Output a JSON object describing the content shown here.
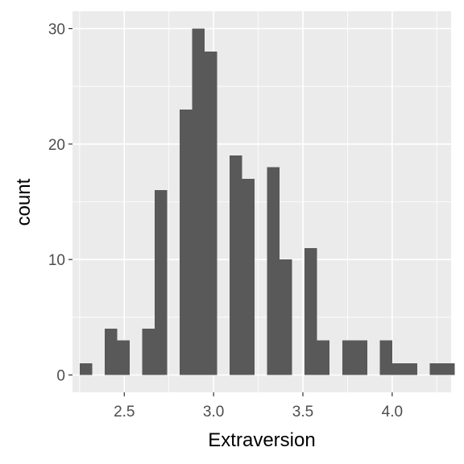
{
  "chart_data": {
    "type": "bar",
    "subtype": "histogram",
    "title": "",
    "xlabel": "Extraversion",
    "ylabel": "count",
    "xlim": [
      2.21,
      4.33
    ],
    "ylim": [
      -1.5,
      31.5
    ],
    "x_ticks": [
      2.5,
      3.0,
      3.5,
      4.0
    ],
    "x_tick_labels": [
      "2.5",
      "3.0",
      "3.5",
      "4.0"
    ],
    "y_ticks": [
      0,
      10,
      20,
      30
    ],
    "y_tick_labels": [
      "0",
      "10",
      "20",
      "30"
    ],
    "grid": true,
    "legend": "none",
    "colors": {
      "panel": "#ebebeb",
      "grid": "#ffffff",
      "bar": "#595959"
    },
    "bins": [
      {
        "x0": 2.25,
        "x1": 2.32,
        "count": 1
      },
      {
        "x0": 2.32,
        "x1": 2.39,
        "count": 0
      },
      {
        "x0": 2.39,
        "x1": 2.46,
        "count": 4
      },
      {
        "x0": 2.46,
        "x1": 2.53,
        "count": 3
      },
      {
        "x0": 2.53,
        "x1": 2.6,
        "count": 0
      },
      {
        "x0": 2.6,
        "x1": 2.67,
        "count": 4
      },
      {
        "x0": 2.67,
        "x1": 2.74,
        "count": 16
      },
      {
        "x0": 2.74,
        "x1": 2.81,
        "count": 0
      },
      {
        "x0": 2.81,
        "x1": 2.88,
        "count": 23
      },
      {
        "x0": 2.88,
        "x1": 2.95,
        "count": 30
      },
      {
        "x0": 2.95,
        "x1": 3.02,
        "count": 28
      },
      {
        "x0": 3.02,
        "x1": 3.09,
        "count": 0
      },
      {
        "x0": 3.09,
        "x1": 3.16,
        "count": 19
      },
      {
        "x0": 3.16,
        "x1": 3.23,
        "count": 17
      },
      {
        "x0": 3.23,
        "x1": 3.3,
        "count": 0
      },
      {
        "x0": 3.3,
        "x1": 3.37,
        "count": 18
      },
      {
        "x0": 3.37,
        "x1": 3.44,
        "count": 10
      },
      {
        "x0": 3.44,
        "x1": 3.51,
        "count": 0
      },
      {
        "x0": 3.51,
        "x1": 3.58,
        "count": 11
      },
      {
        "x0": 3.58,
        "x1": 3.65,
        "count": 3
      },
      {
        "x0": 3.65,
        "x1": 3.72,
        "count": 0
      },
      {
        "x0": 3.72,
        "x1": 3.79,
        "count": 3
      },
      {
        "x0": 3.79,
        "x1": 3.86,
        "count": 3
      },
      {
        "x0": 3.86,
        "x1": 3.93,
        "count": 0
      },
      {
        "x0": 3.93,
        "x1": 4.0,
        "count": 3
      },
      {
        "x0": 4.0,
        "x1": 4.07,
        "count": 1
      },
      {
        "x0": 4.07,
        "x1": 4.14,
        "count": 1
      },
      {
        "x0": 4.14,
        "x1": 4.21,
        "count": 0
      },
      {
        "x0": 4.21,
        "x1": 4.28,
        "count": 1
      },
      {
        "x0": 4.28,
        "x1": 4.35,
        "count": 1
      }
    ]
  }
}
